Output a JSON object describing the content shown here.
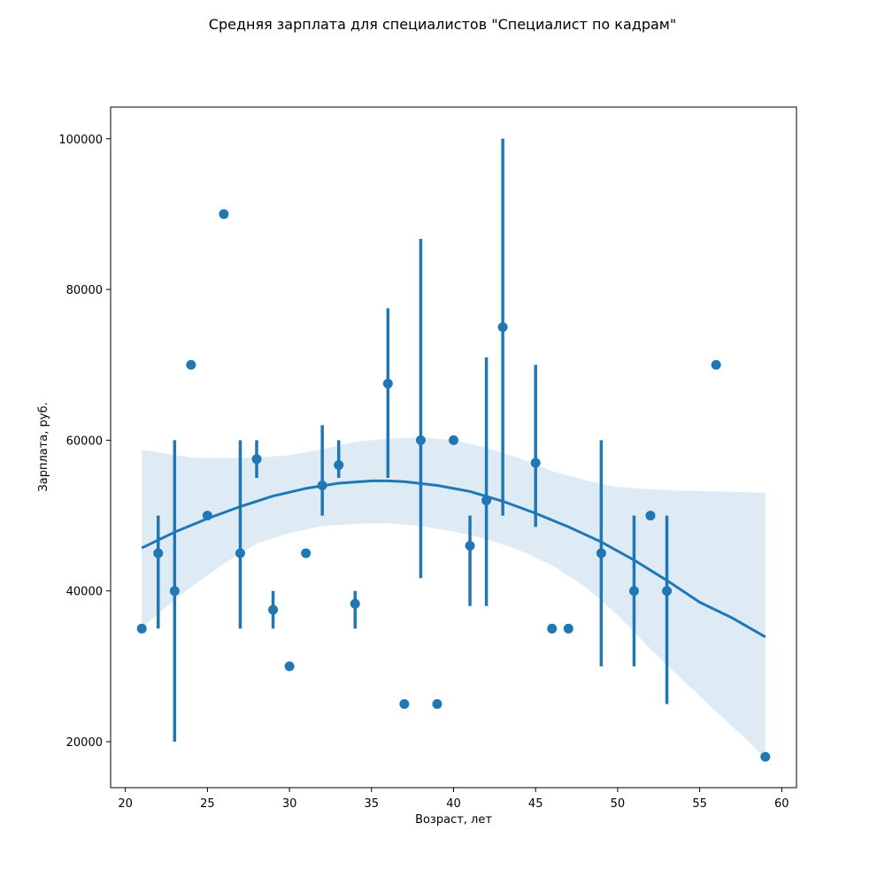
{
  "chart_data": {
    "type": "scatter",
    "title": "Средняя зарплата для специалистов \"Специалист по кадрам\"",
    "xlabel": "Возраст, лет",
    "ylabel": "Зарплата, руб.",
    "xlim": [
      19.1,
      60.9
    ],
    "ylim": [
      13900,
      104200
    ],
    "xticks": [
      20,
      25,
      30,
      35,
      40,
      45,
      50,
      55,
      60
    ],
    "yticks": [
      20000,
      40000,
      60000,
      80000,
      100000
    ],
    "grid": false,
    "color": "#1f77b4",
    "band_color": "#1f77b4",
    "points": [
      {
        "x": 21,
        "y": 35000
      },
      {
        "x": 22,
        "y": 45000,
        "err": [
          35000,
          50000
        ]
      },
      {
        "x": 23,
        "y": 40000,
        "err": [
          20000,
          60000
        ]
      },
      {
        "x": 24,
        "y": 70000
      },
      {
        "x": 25,
        "y": 50000
      },
      {
        "x": 26,
        "y": 90000
      },
      {
        "x": 27,
        "y": 45000,
        "err": [
          35000,
          60000
        ]
      },
      {
        "x": 28,
        "y": 57500,
        "err": [
          55000,
          60000
        ]
      },
      {
        "x": 29,
        "y": 37500,
        "err": [
          35000,
          40000
        ]
      },
      {
        "x": 30,
        "y": 30000
      },
      {
        "x": 31,
        "y": 45000
      },
      {
        "x": 32,
        "y": 54000,
        "err": [
          50000,
          62000
        ]
      },
      {
        "x": 33,
        "y": 56700,
        "err": [
          55000,
          60000
        ]
      },
      {
        "x": 34,
        "y": 38300,
        "err": [
          35000,
          40000
        ]
      },
      {
        "x": 36,
        "y": 67500,
        "err": [
          55000,
          77500
        ]
      },
      {
        "x": 37,
        "y": 25000
      },
      {
        "x": 38,
        "y": 60000,
        "err": [
          41700,
          86700
        ]
      },
      {
        "x": 39,
        "y": 25000
      },
      {
        "x": 40,
        "y": 60000
      },
      {
        "x": 41,
        "y": 46000,
        "err": [
          38000,
          50000
        ]
      },
      {
        "x": 42,
        "y": 52000,
        "err": [
          38000,
          71000
        ]
      },
      {
        "x": 43,
        "y": 75000,
        "err": [
          50000,
          100000
        ]
      },
      {
        "x": 45,
        "y": 57000,
        "err": [
          48500,
          70000
        ]
      },
      {
        "x": 46,
        "y": 35000
      },
      {
        "x": 47,
        "y": 35000
      },
      {
        "x": 49,
        "y": 45000,
        "err": [
          30000,
          60000
        ]
      },
      {
        "x": 51,
        "y": 40000,
        "err": [
          30000,
          50000
        ]
      },
      {
        "x": 52,
        "y": 50000
      },
      {
        "x": 53,
        "y": 40000,
        "err": [
          25000,
          50000
        ]
      },
      {
        "x": 56,
        "y": 70000
      },
      {
        "x": 59,
        "y": 18000
      }
    ],
    "trend_line": {
      "x": [
        21,
        23,
        25,
        27,
        29,
        31,
        33,
        35,
        36,
        37,
        39,
        41,
        43,
        45,
        47,
        49,
        51,
        53,
        55,
        57,
        59
      ],
      "y": [
        45700,
        47800,
        49600,
        51200,
        52600,
        53600,
        54300,
        54600,
        54600,
        54500,
        54000,
        53200,
        51900,
        50300,
        48500,
        46500,
        44100,
        41400,
        38500,
        36400,
        33900
      ]
    },
    "confidence_band": {
      "x": [
        21,
        22,
        24,
        26,
        28,
        30,
        32,
        34,
        36,
        38,
        40,
        42,
        44,
        46,
        48,
        50,
        52,
        54,
        56,
        58,
        59
      ],
      "upper": [
        58700,
        58400,
        57700,
        57600,
        57700,
        58000,
        58800,
        59800,
        60200,
        60400,
        60000,
        59000,
        57600,
        55900,
        54700,
        53800,
        53500,
        53300,
        53200,
        53100,
        53000
      ],
      "lower": [
        35000,
        37000,
        40500,
        43600,
        46300,
        47700,
        48600,
        48900,
        49000,
        48600,
        47900,
        46900,
        45400,
        43400,
        40600,
        36800,
        32300,
        28100,
        24000,
        20000,
        17700
      ]
    }
  }
}
